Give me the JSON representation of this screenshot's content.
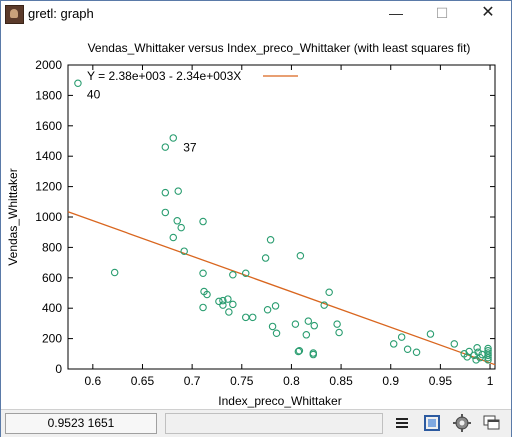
{
  "window": {
    "title": "gretl: graph",
    "minimize_glyph": "—",
    "maximize_glyph": "☐",
    "close_glyph": "✕"
  },
  "chart_data": {
    "type": "scatter",
    "title": "Vendas_Whittaker versus Index_preco_Whittaker (with least squares fit)",
    "xlabel": "Index_preco_Whittaker",
    "ylabel": "Vendas_Whittaker",
    "xlim": [
      0.575,
      1.005
    ],
    "ylim": [
      0,
      2000
    ],
    "xticks": [
      0.6,
      0.65,
      0.7,
      0.75,
      0.8,
      0.85,
      0.9,
      0.95,
      1
    ],
    "xtick_labels": [
      "0.6",
      "0.65",
      "0.7",
      "0.75",
      "0.8",
      "0.85",
      "0.9",
      "0.95",
      "1"
    ],
    "yticks": [
      0,
      200,
      400,
      600,
      800,
      1000,
      1200,
      1400,
      1600,
      1800,
      2000
    ],
    "ytick_labels": [
      "0",
      "200",
      "400",
      "600",
      "800",
      "1000",
      "1200",
      "1400",
      "1600",
      "1800",
      "2000"
    ],
    "grid": false,
    "legend": {
      "placement": "top-left",
      "label": "Y = 2.38e+003 - 2.34e+003X"
    },
    "fit_line": {
      "intercept": 2380,
      "slope": -2340
    },
    "point_color": "#2a9d70",
    "line_color": "#d9661f",
    "annotations": [
      {
        "text": "40",
        "x": 0.588,
        "y": 1820
      },
      {
        "text": "37",
        "x": 0.685,
        "y": 1470
      }
    ],
    "points": [
      [
        0.585,
        1880
      ],
      [
        0.622,
        635
      ],
      [
        0.673,
        1460
      ],
      [
        0.681,
        1520
      ],
      [
        0.673,
        1160
      ],
      [
        0.686,
        1170
      ],
      [
        0.673,
        1030
      ],
      [
        0.685,
        975
      ],
      [
        0.689,
        930
      ],
      [
        0.711,
        970
      ],
      [
        0.681,
        865
      ],
      [
        0.692,
        775
      ],
      [
        0.711,
        630
      ],
      [
        0.712,
        510
      ],
      [
        0.715,
        490
      ],
      [
        0.711,
        405
      ],
      [
        0.727,
        445
      ],
      [
        0.731,
        450
      ],
      [
        0.736,
        460
      ],
      [
        0.731,
        420
      ],
      [
        0.741,
        425
      ],
      [
        0.741,
        620
      ],
      [
        0.754,
        630
      ],
      [
        0.737,
        375
      ],
      [
        0.754,
        340
      ],
      [
        0.761,
        340
      ],
      [
        0.774,
        730
      ],
      [
        0.779,
        850
      ],
      [
        0.776,
        390
      ],
      [
        0.784,
        415
      ],
      [
        0.781,
        280
      ],
      [
        0.785,
        235
      ],
      [
        0.804,
        295
      ],
      [
        0.809,
        745
      ],
      [
        0.815,
        225
      ],
      [
        0.817,
        315
      ],
      [
        0.823,
        285
      ],
      [
        0.833,
        420
      ],
      [
        0.838,
        505
      ],
      [
        0.846,
        295
      ],
      [
        0.848,
        240
      ],
      [
        0.807,
        115
      ],
      [
        0.808,
        120
      ],
      [
        0.822,
        105
      ],
      [
        0.822,
        95
      ],
      [
        0.903,
        165
      ],
      [
        0.911,
        210
      ],
      [
        0.917,
        130
      ],
      [
        0.926,
        110
      ],
      [
        0.94,
        230
      ],
      [
        0.964,
        165
      ],
      [
        0.974,
        100
      ],
      [
        0.977,
        80
      ],
      [
        0.979,
        115
      ],
      [
        0.984,
        90
      ],
      [
        0.986,
        60
      ],
      [
        0.987,
        140
      ],
      [
        0.988,
        110
      ],
      [
        0.99,
        75
      ],
      [
        0.992,
        95
      ],
      [
        0.998,
        60
      ],
      [
        0.998,
        75
      ],
      [
        0.998,
        90
      ],
      [
        0.998,
        105
      ],
      [
        0.998,
        120
      ],
      [
        0.998,
        135
      ]
    ]
  },
  "statusbar": {
    "coords": "0.9523 1651"
  },
  "toolbar": [
    {
      "name": "menu-icon"
    },
    {
      "name": "zoom-icon"
    },
    {
      "name": "settings-icon"
    },
    {
      "name": "windows-icon"
    }
  ]
}
